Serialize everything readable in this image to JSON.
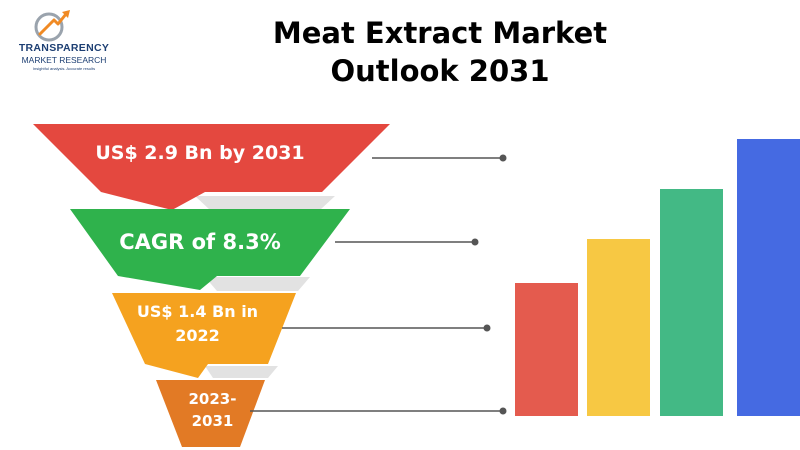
{
  "title_line1": "Meat Extract Market",
  "title_line2": "Outlook 2031",
  "logo": {
    "name": "TRANSPARENCY",
    "sub": "MARKET RESEARCH",
    "tagline": "Insightful analysis. Accurate results"
  },
  "funnel": [
    {
      "line1": "US$ 2.9 Bn by 2031",
      "line2": "",
      "color": "#e4483f"
    },
    {
      "line1": "CAGR of 8.3%",
      "line2": "",
      "color": "#2fb24c"
    },
    {
      "line1": "US$ 1.4 Bn in",
      "line2": "2022",
      "color": "#f5a21f"
    },
    {
      "line1": "2023-",
      "line2": "2031",
      "color": "#e27a25"
    }
  ],
  "bars": [
    {
      "level": 0.48,
      "color": "#e45b4e"
    },
    {
      "level": 0.64,
      "color": "#f7c843"
    },
    {
      "level": 0.82,
      "color": "#43b985"
    },
    {
      "level": 1.0,
      "color": "#456ae2"
    }
  ],
  "connector_color": "#555555"
}
